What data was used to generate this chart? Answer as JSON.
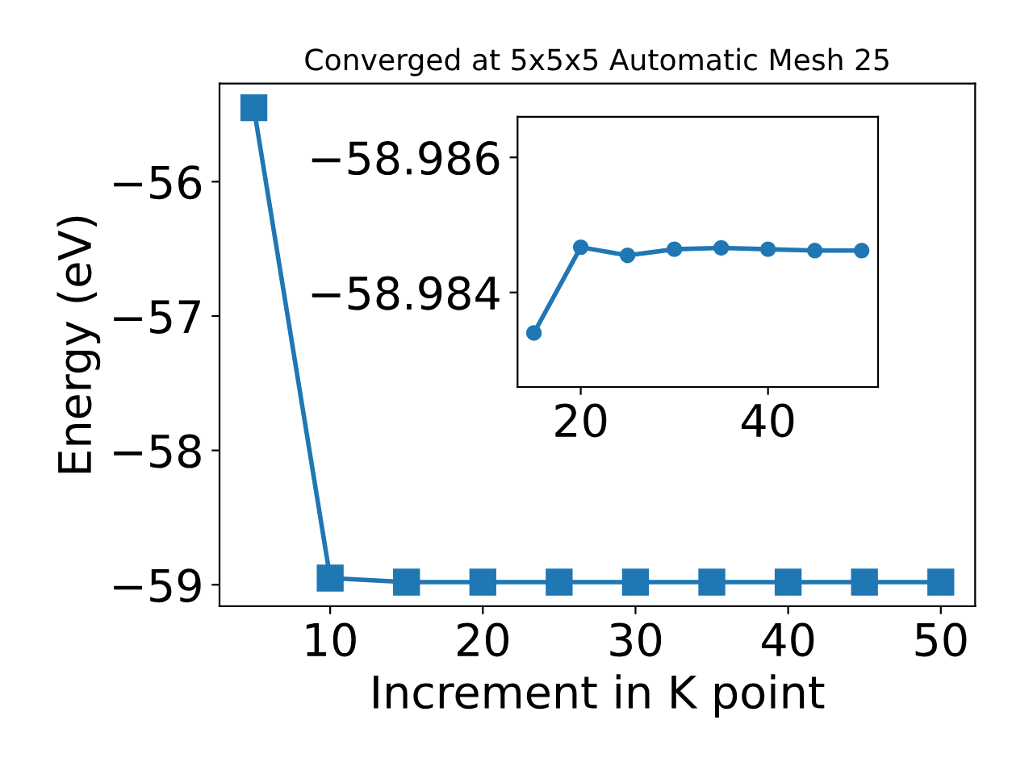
{
  "chart_data": [
    {
      "type": "line",
      "title": "Converged at 5x5x5 Automatic Mesh 25",
      "xlabel": "Increment in K point",
      "ylabel": "Energy (eV)",
      "x": [
        5,
        10,
        15,
        20,
        25,
        30,
        35,
        40,
        45,
        50
      ],
      "series": [
        {
          "color": "#1f77b4",
          "values": [
            -55.45,
            -58.95,
            -58.98,
            -58.98,
            -58.98,
            -58.98,
            -58.98,
            -58.98,
            -58.98,
            -58.98
          ]
        }
      ],
      "xlim": [
        2.75,
        52.25
      ],
      "xticks": [
        10,
        20,
        30,
        40,
        50
      ],
      "ylim": [
        -59.16,
        -55.27
      ],
      "yticks": [
        {
          "value": -59,
          "label": "−59"
        },
        {
          "value": -58,
          "label": "−58"
        },
        {
          "value": -57,
          "label": "−57"
        },
        {
          "value": -56,
          "label": "−56"
        }
      ],
      "marker": "square",
      "line_style": "solid",
      "grid": false,
      "legend": false
    },
    {
      "type": "line",
      "x": [
        15,
        20,
        25,
        30,
        35,
        40,
        45,
        50
      ],
      "series": [
        {
          "color": "#1f77b4",
          "values": [
            -58.9834,
            -58.98467,
            -58.98455,
            -58.98464,
            -58.98466,
            -58.98464,
            -58.98462,
            -58.98462
          ]
        }
      ],
      "xlim": [
        13.25,
        51.75
      ],
      "xticks": [
        20,
        40
      ],
      "ylim": [
        -58.9826,
        -58.9866
      ],
      "yticks": [
        {
          "value": -58.986,
          "label": "−58.986"
        },
        {
          "value": -58.984,
          "label": "−58.984"
        }
      ],
      "marker": "circle",
      "line_style": "solid",
      "grid": false,
      "legend": false
    }
  ]
}
